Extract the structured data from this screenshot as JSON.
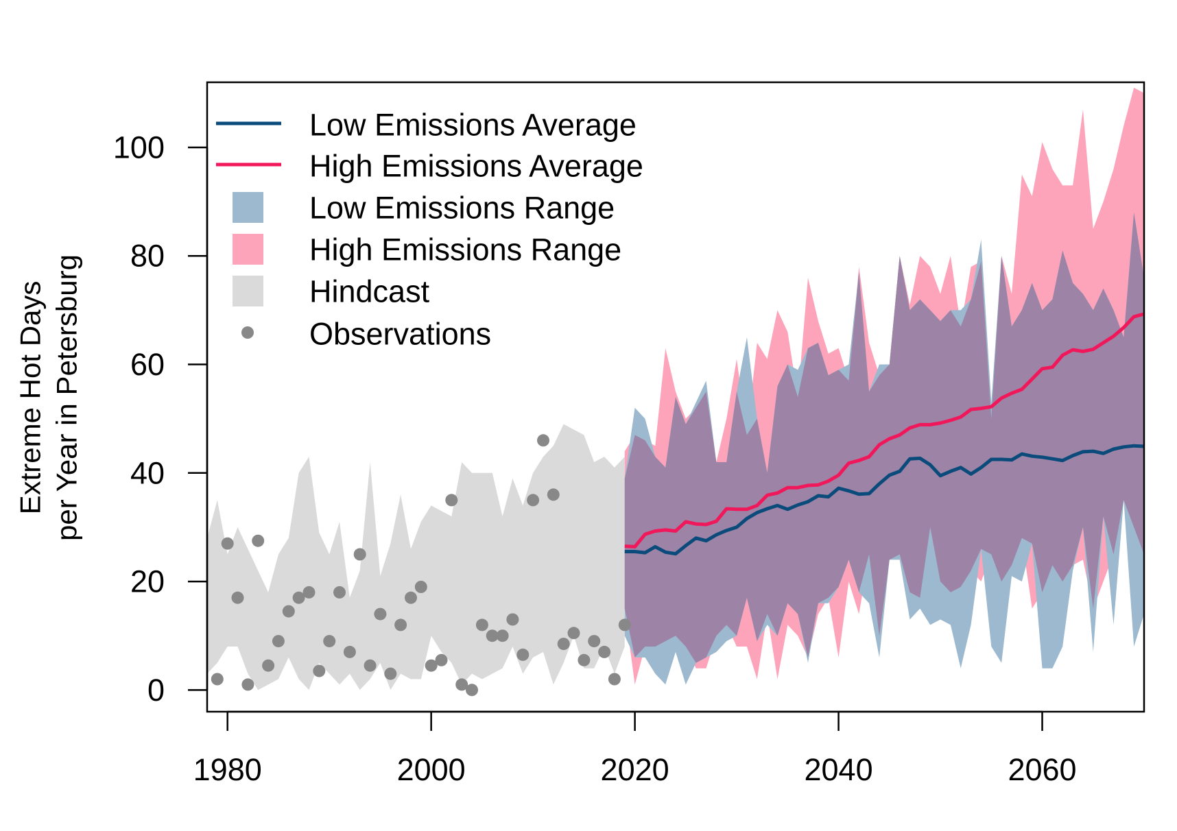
{
  "chart_data": {
    "type": "line",
    "title": "",
    "xlabel": "",
    "ylabel_lines": [
      "Extreme Hot Days",
      "per Year in Petersburg"
    ],
    "xlim": [
      1978,
      2070
    ],
    "ylim": [
      -4,
      112
    ],
    "x_ticks": [
      1980,
      2000,
      2020,
      2040,
      2060
    ],
    "y_ticks": [
      0,
      20,
      40,
      60,
      80,
      100
    ],
    "grid": false,
    "legend_position": "top-left",
    "legend": {
      "low_avg": "Low Emissions Average",
      "high_avg": "High Emissions Average",
      "low_range": "Low Emissions Range",
      "high_range": "High Emissions Range",
      "hindcast": "Hindcast",
      "observations": "Observations"
    },
    "colors": {
      "low_avg": "#0b4b7c",
      "high_avg": "#f0185a",
      "low_range": "#9cb9cf",
      "high_range": "#fda4bb",
      "overlap": "#9d84a6",
      "hindcast": "#dadada",
      "observations": "#888888"
    },
    "hindcast": {
      "x": [
        1978,
        1979,
        1980,
        1981,
        1982,
        1983,
        1984,
        1985,
        1986,
        1987,
        1988,
        1989,
        1990,
        1991,
        1992,
        1993,
        1994,
        1995,
        1996,
        1997,
        1998,
        1999,
        2000,
        2001,
        2002,
        2003,
        2004,
        2005,
        2006,
        2007,
        2008,
        2009,
        2010,
        2011,
        2012,
        2013,
        2014,
        2015,
        2016,
        2017,
        2018,
        2019
      ],
      "upper": [
        28,
        35,
        25,
        30,
        26,
        22,
        18,
        25,
        28,
        40,
        43,
        29,
        25,
        31,
        17,
        22,
        42,
        21,
        27,
        36,
        26,
        31,
        34,
        33,
        32,
        42,
        40,
        40,
        40,
        32,
        39,
        34,
        40,
        43,
        45,
        49,
        48,
        47,
        42,
        43,
        41,
        43
      ],
      "lower": [
        3,
        5,
        8,
        8,
        3,
        0,
        1,
        2,
        6,
        2,
        0,
        5,
        3,
        1,
        3,
        0,
        2,
        5,
        0,
        3,
        2,
        2,
        10,
        7,
        5,
        1,
        3,
        2,
        3,
        4,
        8,
        3,
        6,
        7,
        1,
        5,
        10,
        4,
        4,
        8,
        3,
        8
      ]
    },
    "high_range": {
      "x": [
        2019,
        2020,
        2021,
        2022,
        2023,
        2024,
        2025,
        2026,
        2027,
        2028,
        2029,
        2030,
        2031,
        2032,
        2033,
        2034,
        2035,
        2036,
        2037,
        2038,
        2039,
        2040,
        2041,
        2042,
        2043,
        2044,
        2045,
        2046,
        2047,
        2048,
        2049,
        2050,
        2051,
        2052,
        2053,
        2054,
        2055,
        2056,
        2057,
        2058,
        2059,
        2060,
        2061,
        2062,
        2063,
        2064,
        2065,
        2066,
        2067,
        2068,
        2069,
        2070
      ],
      "upper": [
        44,
        47,
        46,
        45,
        63,
        55,
        50,
        52,
        55,
        42,
        50,
        61,
        47,
        64,
        61,
        70,
        66,
        54,
        76,
        68,
        62,
        63,
        57,
        78,
        64,
        58,
        60,
        80,
        71,
        80,
        78,
        73,
        80,
        67,
        78,
        79,
        50,
        80,
        73,
        95,
        91,
        101,
        96,
        93,
        93,
        107,
        85,
        90,
        96,
        104,
        111,
        110
      ],
      "lower": [
        15,
        1,
        8,
        8,
        9,
        10,
        8,
        4,
        4,
        10,
        12,
        8,
        8,
        2,
        14,
        2,
        12,
        10,
        6,
        14,
        17,
        6,
        20,
        14,
        25,
        10,
        24,
        25,
        18,
        17,
        30,
        20,
        18,
        19,
        22,
        20,
        25,
        20,
        23,
        28,
        15,
        18,
        23,
        20,
        23,
        24,
        15,
        20,
        25,
        35,
        30,
        25
      ]
    },
    "low_range": {
      "x": [
        2019,
        2020,
        2021,
        2022,
        2023,
        2024,
        2025,
        2026,
        2027,
        2028,
        2029,
        2030,
        2031,
        2032,
        2033,
        2034,
        2035,
        2036,
        2037,
        2038,
        2039,
        2040,
        2041,
        2042,
        2043,
        2044,
        2045,
        2046,
        2047,
        2048,
        2049,
        2050,
        2051,
        2052,
        2053,
        2054,
        2055,
        2056,
        2057,
        2058,
        2059,
        2060,
        2061,
        2062,
        2063,
        2064,
        2065,
        2066,
        2067,
        2068,
        2069,
        2070
      ],
      "upper": [
        39,
        52,
        50,
        43,
        41,
        54,
        49,
        53,
        57,
        42,
        42,
        55,
        65,
        50,
        40,
        56,
        60,
        59,
        63,
        64,
        58,
        59,
        60,
        77,
        55,
        60,
        60,
        80,
        70,
        72,
        70,
        68,
        70,
        70,
        72,
        83,
        53,
        80,
        67,
        70,
        75,
        70,
        72,
        81,
        75,
        73,
        70,
        74,
        70,
        65,
        88,
        76
      ],
      "lower": [
        10,
        6,
        6,
        3,
        1,
        7,
        1,
        5,
        6,
        7,
        9,
        10,
        17,
        9,
        12,
        10,
        16,
        14,
        5,
        16,
        16,
        19,
        24,
        18,
        16,
        6,
        24,
        24,
        13,
        15,
        12,
        13,
        12,
        4,
        12,
        26,
        8,
        5,
        21,
        20,
        27,
        4,
        4,
        8,
        22,
        30,
        7,
        32,
        12,
        35,
        8,
        14
      ]
    },
    "low_avg": {
      "x": [
        2019,
        2020,
        2021,
        2022,
        2023,
        2024,
        2025,
        2026,
        2027,
        2028,
        2029,
        2030,
        2031,
        2032,
        2033,
        2034,
        2035,
        2036,
        2037,
        2038,
        2039,
        2040,
        2041,
        2042,
        2043,
        2044,
        2045,
        2046,
        2047,
        2048,
        2049,
        2050,
        2051,
        2052,
        2053,
        2054,
        2055,
        2056,
        2057,
        2058,
        2059,
        2060,
        2061,
        2062,
        2063,
        2064,
        2065,
        2066,
        2067,
        2068,
        2069,
        2070
      ],
      "y": [
        25.5,
        25.5,
        25.3,
        26.4,
        25.4,
        25.1,
        26.6,
        28.0,
        27.5,
        28.6,
        29.4,
        30.0,
        31.6,
        32.7,
        33.4,
        34.0,
        33.3,
        34.1,
        34.7,
        35.8,
        35.6,
        37.2,
        36.7,
        36.1,
        36.2,
        38.0,
        39.6,
        40.3,
        42.6,
        42.7,
        41.5,
        39.5,
        40.3,
        41.0,
        39.8,
        41.0,
        42.5,
        42.5,
        42.4,
        43.5,
        43.1,
        42.9,
        42.6,
        42.3,
        43.2,
        43.9,
        44.0,
        43.6,
        44.4,
        44.8,
        45.0,
        44.9
      ]
    },
    "high_avg": {
      "x": [
        2019,
        2020,
        2021,
        2022,
        2023,
        2024,
        2025,
        2026,
        2027,
        2028,
        2029,
        2030,
        2031,
        2032,
        2033,
        2034,
        2035,
        2036,
        2037,
        2038,
        2039,
        2040,
        2041,
        2042,
        2043,
        2044,
        2045,
        2046,
        2047,
        2048,
        2049,
        2050,
        2051,
        2052,
        2053,
        2054,
        2055,
        2056,
        2057,
        2058,
        2059,
        2060,
        2061,
        2062,
        2063,
        2064,
        2065,
        2066,
        2067,
        2068,
        2069,
        2070
      ],
      "y": [
        26.5,
        26.4,
        28.7,
        29.3,
        29.5,
        29.3,
        31.0,
        30.6,
        30.5,
        31.1,
        33.4,
        33.3,
        33.3,
        34.0,
        35.9,
        36.3,
        37.3,
        37.3,
        37.7,
        37.8,
        38.5,
        39.6,
        41.8,
        42.3,
        43.0,
        45.2,
        46.3,
        47.0,
        48.3,
        48.9,
        48.9,
        49.2,
        49.7,
        50.3,
        51.7,
        51.9,
        52.2,
        53.8,
        54.7,
        55.4,
        57.3,
        59.2,
        59.5,
        61.7,
        62.7,
        62.4,
        62.8,
        64.0,
        65.2,
        66.8,
        68.8,
        69.3
      ]
    },
    "observations": {
      "x": [
        1979,
        1980,
        1981,
        1982,
        1983,
        1984,
        1985,
        1986,
        1987,
        1988,
        1989,
        1990,
        1991,
        1992,
        1993,
        1994,
        1995,
        1996,
        1997,
        1998,
        1999,
        2000,
        2001,
        2002,
        2003,
        2004,
        2005,
        2006,
        2007,
        2008,
        2009,
        2010,
        2011,
        2012,
        2013,
        2014,
        2015,
        2016,
        2017,
        2018,
        2019
      ],
      "y": [
        2,
        27,
        17,
        1,
        27.5,
        4.5,
        9,
        14.5,
        17,
        18,
        3.5,
        9,
        18,
        7,
        25,
        4.5,
        14,
        3,
        12,
        17,
        19,
        4.5,
        5.5,
        35,
        1,
        0,
        12,
        10,
        10,
        13,
        6.5,
        35,
        46,
        36,
        8.5,
        10.5,
        5.5,
        9,
        7,
        2,
        12
      ]
    }
  }
}
